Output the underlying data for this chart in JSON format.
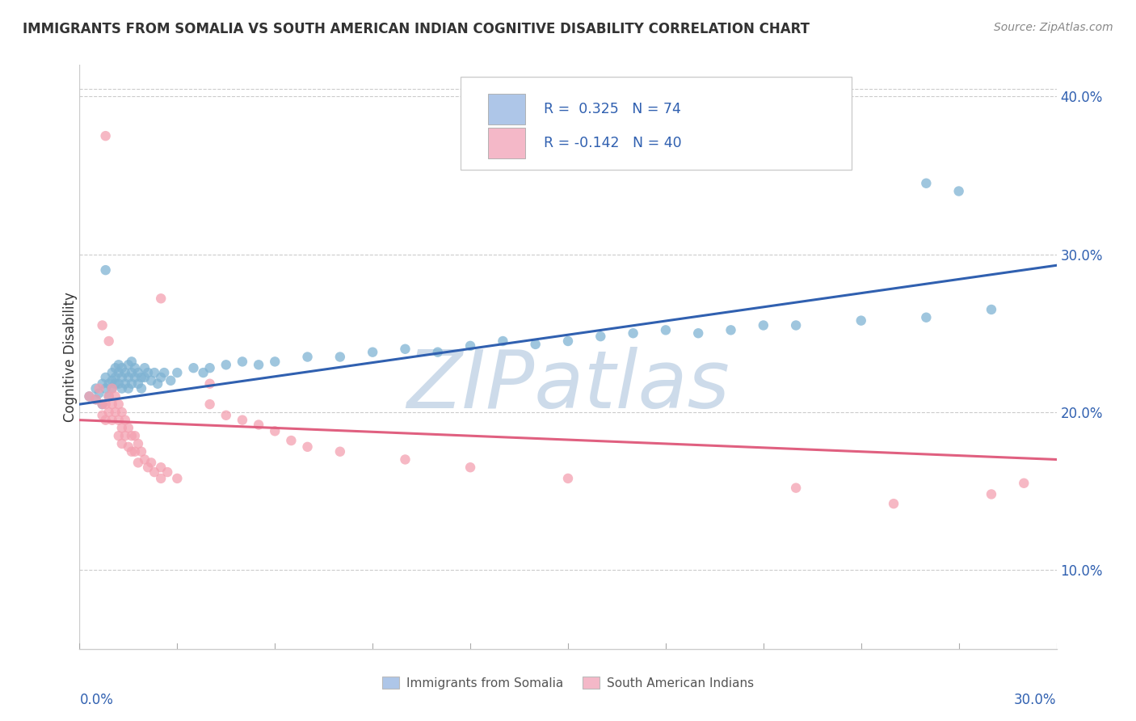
{
  "title": "IMMIGRANTS FROM SOMALIA VS SOUTH AMERICAN INDIAN COGNITIVE DISABILITY CORRELATION CHART",
  "source_text": "Source: ZipAtlas.com",
  "ylabel": "Cognitive Disability",
  "xmin": 0.0,
  "xmax": 0.3,
  "ymin": 0.05,
  "ymax": 0.42,
  "yticks": [
    0.1,
    0.2,
    0.3,
    0.4
  ],
  "ytick_labels": [
    "10.0%",
    "20.0%",
    "30.0%",
    "40.0%"
  ],
  "series1_color": "#7fb3d3",
  "series2_color": "#f4a0b0",
  "trendline1_color": "#3060b0",
  "trendline2_color": "#e06080",
  "legend_sq1_color": "#aec6e8",
  "legend_sq2_color": "#f4b8c8",
  "legend_text_color": "#3060b0",
  "watermark_text": "ZIPatlas",
  "watermark_color": "#c8d8e8",
  "blue_scatter": [
    [
      0.003,
      0.21
    ],
    [
      0.005,
      0.215
    ],
    [
      0.005,
      0.208
    ],
    [
      0.006,
      0.212
    ],
    [
      0.007,
      0.218
    ],
    [
      0.007,
      0.205
    ],
    [
      0.008,
      0.222
    ],
    [
      0.008,
      0.215
    ],
    [
      0.009,
      0.218
    ],
    [
      0.009,
      0.21
    ],
    [
      0.01,
      0.225
    ],
    [
      0.01,
      0.22
    ],
    [
      0.01,
      0.215
    ],
    [
      0.011,
      0.228
    ],
    [
      0.011,
      0.222
    ],
    [
      0.011,
      0.218
    ],
    [
      0.012,
      0.23
    ],
    [
      0.012,
      0.225
    ],
    [
      0.012,
      0.218
    ],
    [
      0.013,
      0.228
    ],
    [
      0.013,
      0.222
    ],
    [
      0.013,
      0.215
    ],
    [
      0.014,
      0.225
    ],
    [
      0.014,
      0.218
    ],
    [
      0.015,
      0.23
    ],
    [
      0.015,
      0.222
    ],
    [
      0.015,
      0.215
    ],
    [
      0.016,
      0.232
    ],
    [
      0.016,
      0.225
    ],
    [
      0.016,
      0.218
    ],
    [
      0.017,
      0.228
    ],
    [
      0.017,
      0.222
    ],
    [
      0.018,
      0.225
    ],
    [
      0.018,
      0.218
    ],
    [
      0.019,
      0.222
    ],
    [
      0.019,
      0.215
    ],
    [
      0.02,
      0.228
    ],
    [
      0.02,
      0.222
    ],
    [
      0.021,
      0.225
    ],
    [
      0.022,
      0.22
    ],
    [
      0.023,
      0.225
    ],
    [
      0.024,
      0.218
    ],
    [
      0.025,
      0.222
    ],
    [
      0.026,
      0.225
    ],
    [
      0.028,
      0.22
    ],
    [
      0.03,
      0.225
    ],
    [
      0.035,
      0.228
    ],
    [
      0.038,
      0.225
    ],
    [
      0.04,
      0.228
    ],
    [
      0.045,
      0.23
    ],
    [
      0.05,
      0.232
    ],
    [
      0.055,
      0.23
    ],
    [
      0.06,
      0.232
    ],
    [
      0.07,
      0.235
    ],
    [
      0.08,
      0.235
    ],
    [
      0.09,
      0.238
    ],
    [
      0.1,
      0.24
    ],
    [
      0.11,
      0.238
    ],
    [
      0.12,
      0.242
    ],
    [
      0.13,
      0.245
    ],
    [
      0.14,
      0.243
    ],
    [
      0.15,
      0.245
    ],
    [
      0.16,
      0.248
    ],
    [
      0.17,
      0.25
    ],
    [
      0.18,
      0.252
    ],
    [
      0.19,
      0.25
    ],
    [
      0.2,
      0.252
    ],
    [
      0.21,
      0.255
    ],
    [
      0.22,
      0.255
    ],
    [
      0.24,
      0.258
    ],
    [
      0.26,
      0.26
    ],
    [
      0.28,
      0.265
    ],
    [
      0.008,
      0.29
    ],
    [
      0.26,
      0.345
    ],
    [
      0.27,
      0.34
    ]
  ],
  "pink_scatter": [
    [
      0.003,
      0.21
    ],
    [
      0.005,
      0.208
    ],
    [
      0.006,
      0.215
    ],
    [
      0.007,
      0.205
    ],
    [
      0.007,
      0.198
    ],
    [
      0.008,
      0.205
    ],
    [
      0.008,
      0.195
    ],
    [
      0.009,
      0.21
    ],
    [
      0.009,
      0.2
    ],
    [
      0.01,
      0.215
    ],
    [
      0.01,
      0.205
    ],
    [
      0.01,
      0.195
    ],
    [
      0.011,
      0.21
    ],
    [
      0.011,
      0.2
    ],
    [
      0.012,
      0.205
    ],
    [
      0.012,
      0.195
    ],
    [
      0.012,
      0.185
    ],
    [
      0.013,
      0.2
    ],
    [
      0.013,
      0.19
    ],
    [
      0.013,
      0.18
    ],
    [
      0.014,
      0.195
    ],
    [
      0.014,
      0.185
    ],
    [
      0.015,
      0.19
    ],
    [
      0.015,
      0.178
    ],
    [
      0.016,
      0.185
    ],
    [
      0.016,
      0.175
    ],
    [
      0.017,
      0.185
    ],
    [
      0.017,
      0.175
    ],
    [
      0.018,
      0.18
    ],
    [
      0.018,
      0.168
    ],
    [
      0.019,
      0.175
    ],
    [
      0.02,
      0.17
    ],
    [
      0.021,
      0.165
    ],
    [
      0.022,
      0.168
    ],
    [
      0.023,
      0.162
    ],
    [
      0.025,
      0.165
    ],
    [
      0.025,
      0.158
    ],
    [
      0.027,
      0.162
    ],
    [
      0.03,
      0.158
    ],
    [
      0.008,
      0.375
    ],
    [
      0.007,
      0.255
    ],
    [
      0.009,
      0.245
    ],
    [
      0.025,
      0.272
    ],
    [
      0.04,
      0.218
    ],
    [
      0.04,
      0.205
    ],
    [
      0.045,
      0.198
    ],
    [
      0.05,
      0.195
    ],
    [
      0.055,
      0.192
    ],
    [
      0.06,
      0.188
    ],
    [
      0.065,
      0.182
    ],
    [
      0.07,
      0.178
    ],
    [
      0.08,
      0.175
    ],
    [
      0.1,
      0.17
    ],
    [
      0.12,
      0.165
    ],
    [
      0.15,
      0.158
    ],
    [
      0.22,
      0.152
    ],
    [
      0.28,
      0.148
    ],
    [
      0.25,
      0.142
    ],
    [
      0.29,
      0.155
    ]
  ]
}
